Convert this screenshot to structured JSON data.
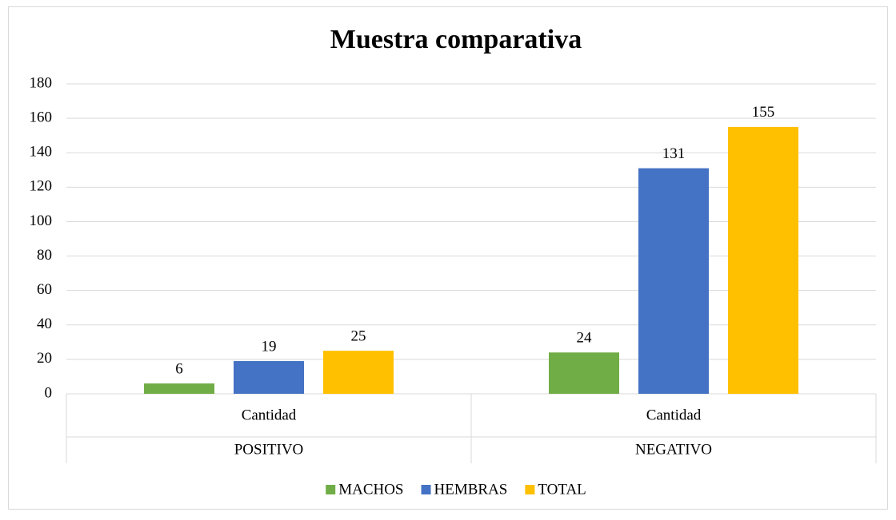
{
  "chart_data": {
    "type": "bar",
    "title": "Muestra comparativa",
    "categories": [
      "Cantidad",
      "Cantidad"
    ],
    "category_groups": [
      "POSITIVO",
      "NEGATIVO"
    ],
    "series": [
      {
        "name": "MACHOS",
        "color": "#70ad47",
        "values": [
          6,
          24
        ]
      },
      {
        "name": "HEMBRAS",
        "color": "#4472c4",
        "values": [
          19,
          131
        ]
      },
      {
        "name": "TOTAL",
        "color": "#ffc000",
        "values": [
          25,
          155
        ]
      }
    ],
    "ylim": [
      0,
      180
    ],
    "yticks": [
      0,
      20,
      40,
      60,
      80,
      100,
      120,
      140,
      160,
      180
    ],
    "grid": true,
    "legend": "bottom",
    "data_labels": true
  }
}
